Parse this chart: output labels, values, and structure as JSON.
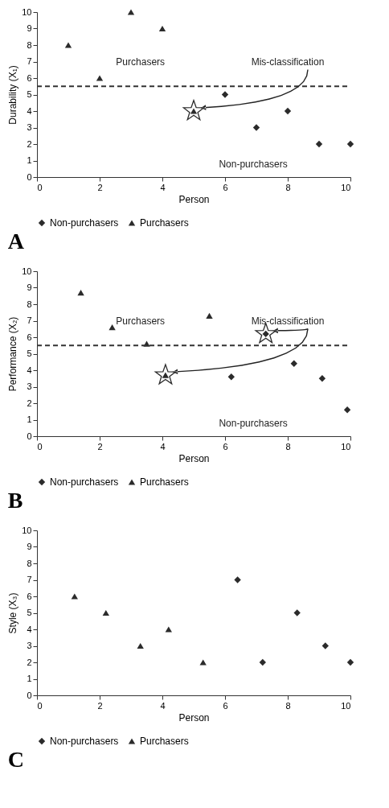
{
  "chart_data": [
    {
      "type": "scatter",
      "title": "A",
      "xlabel": "Person",
      "ylabel": "Durability (X₁)",
      "xlim": [
        0,
        10
      ],
      "ylim": [
        0,
        10
      ],
      "xticks": [
        0,
        2,
        4,
        6,
        8,
        10
      ],
      "yticks": [
        0,
        1,
        2,
        3,
        4,
        5,
        6,
        7,
        8,
        9,
        10
      ],
      "grid": false,
      "legend": "bottom",
      "series": [
        {
          "name": "Non-purchasers",
          "color": "#2b2b2b",
          "marker": "diamond",
          "x": [
            6,
            7,
            8,
            9,
            10
          ],
          "values": [
            5,
            3,
            4,
            2,
            2
          ]
        },
        {
          "name": "Purchasers",
          "color": "#2b2b2b",
          "marker": "triangle",
          "x": [
            1,
            2,
            3,
            4,
            5
          ],
          "values": [
            8,
            6,
            10,
            9,
            4
          ]
        },
        {
          "color": "#2b2b2b",
          "marker": "star",
          "x": [
            5
          ],
          "values": [
            4
          ]
        }
      ],
      "ref_lines": [
        {
          "axis": "y",
          "value": 5.5,
          "line_style": "dashed"
        }
      ],
      "annotations": [
        "Purchasers",
        "Non-purchasers",
        "Mis-classification"
      ]
    },
    {
      "type": "scatter",
      "title": "B",
      "xlabel": "Person",
      "ylabel": "Performance (X₂)",
      "xlim": [
        0,
        10
      ],
      "ylim": [
        0,
        10
      ],
      "xticks": [
        0,
        2,
        4,
        6,
        8,
        10
      ],
      "yticks": [
        0,
        1,
        2,
        3,
        4,
        5,
        6,
        7,
        8,
        9,
        10
      ],
      "grid": false,
      "legend": "bottom",
      "series": [
        {
          "name": "Non-purchasers",
          "color": "#2b2b2b",
          "marker": "diamond",
          "x": [
            6.2,
            7.3,
            8.2,
            9.1,
            9.9
          ],
          "values": [
            3.6,
            6.2,
            4.4,
            3.5,
            1.6
          ]
        },
        {
          "name": "Purchasers",
          "color": "#2b2b2b",
          "marker": "triangle",
          "x": [
            1.4,
            2.4,
            3.5,
            4.1,
            5.5
          ],
          "values": [
            8.7,
            6.6,
            5.6,
            3.7,
            7.3
          ]
        },
        {
          "color": "#2b2b2b",
          "marker": "star",
          "x": [
            4.1,
            7.3
          ],
          "values": [
            3.7,
            6.2
          ]
        }
      ],
      "ref_lines": [
        {
          "axis": "y",
          "value": 5.5,
          "line_style": "dashed"
        }
      ],
      "annotations": [
        "Purchasers",
        "Non-purchasers",
        "Mis-classification"
      ]
    },
    {
      "type": "scatter",
      "title": "C",
      "xlabel": "Person",
      "ylabel": "Style (X₃)",
      "xlim": [
        0,
        10
      ],
      "ylim": [
        0,
        10
      ],
      "xticks": [
        0,
        2,
        4,
        6,
        8,
        10
      ],
      "yticks": [
        0,
        1,
        2,
        3,
        4,
        5,
        6,
        7,
        8,
        9,
        10
      ],
      "grid": false,
      "legend": "bottom",
      "series": [
        {
          "name": "Non-purchasers",
          "color": "#2b2b2b",
          "marker": "diamond",
          "x": [
            6.4,
            7.2,
            8.3,
            9.2,
            10
          ],
          "values": [
            7,
            2,
            5,
            3,
            2
          ]
        },
        {
          "name": "Purchasers",
          "color": "#2b2b2b",
          "marker": "triangle",
          "x": [
            1.2,
            2.2,
            3.3,
            4.2,
            5.3
          ],
          "values": [
            6,
            5,
            3,
            4,
            2
          ]
        }
      ]
    }
  ]
}
